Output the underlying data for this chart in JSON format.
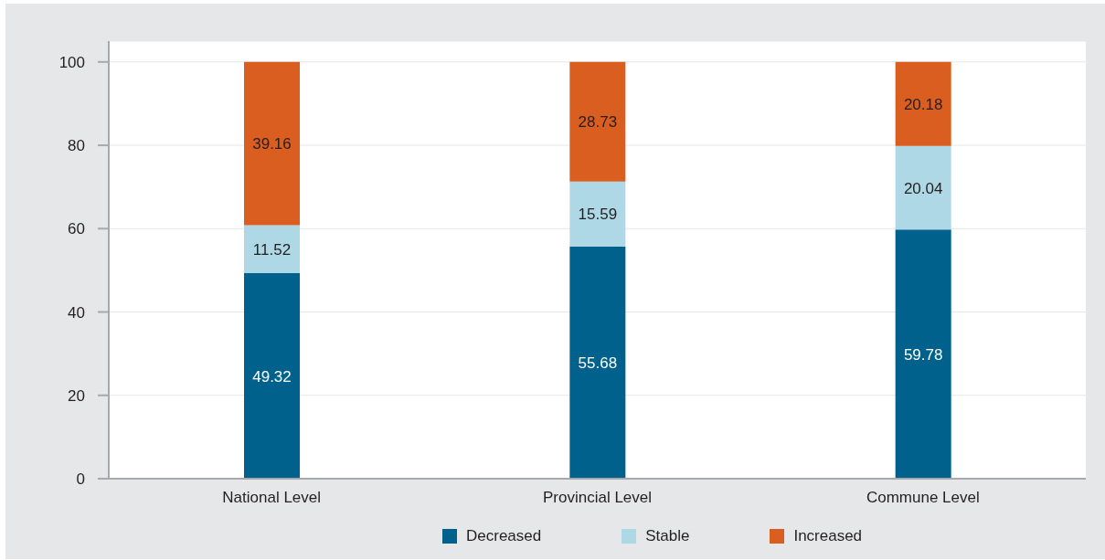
{
  "chart_data": {
    "type": "bar",
    "categories": [
      "National Level",
      "Provincial Level",
      "Commune Level"
    ],
    "series": [
      {
        "name": "Decreased",
        "color": "#00628c",
        "values": [
          49.32,
          55.68,
          59.78
        ]
      },
      {
        "name": "Stable",
        "color": "#aed8e5",
        "values": [
          11.52,
          15.59,
          20.04
        ]
      },
      {
        "name": "Increased",
        "color": "#d95e20",
        "values": [
          39.16,
          28.73,
          20.18
        ]
      }
    ],
    "stacked": true,
    "ylim": [
      0,
      105
    ],
    "yticks": [
      0,
      20,
      40,
      60,
      80,
      100
    ],
    "grid": "y",
    "legend": "bottom",
    "data_labels": true
  }
}
